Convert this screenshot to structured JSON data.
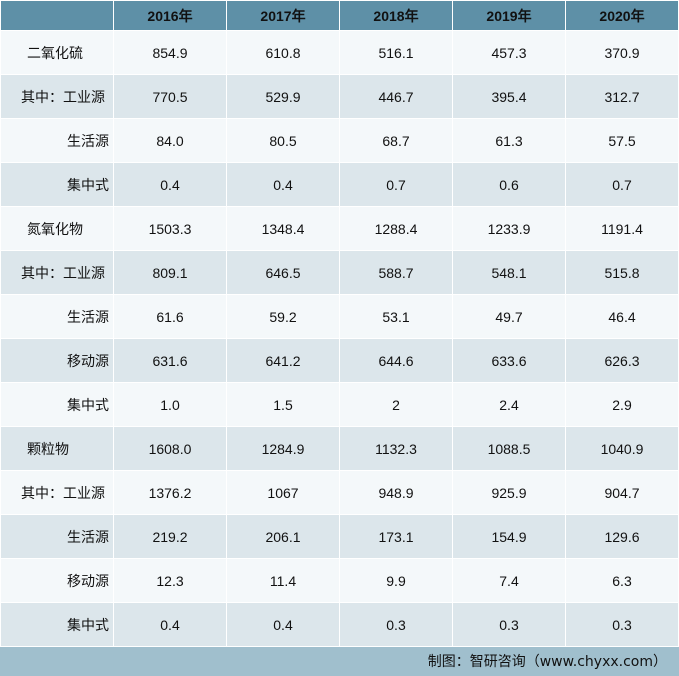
{
  "chart_data": {
    "type": "table",
    "columns": [
      "",
      "2016年",
      "2017年",
      "2018年",
      "2019年",
      "2020年"
    ],
    "rows": [
      {
        "label": "二氧化硫",
        "level": "main",
        "values": [
          "854.9",
          "610.8",
          "516.1",
          "457.3",
          "370.9"
        ]
      },
      {
        "label": "其中：工业源",
        "level": "first",
        "values": [
          "770.5",
          "529.9",
          "446.7",
          "395.4",
          "312.7"
        ]
      },
      {
        "label": "生活源",
        "level": "sub",
        "values": [
          "84.0",
          "80.5",
          "68.7",
          "61.3",
          "57.5"
        ]
      },
      {
        "label": "集中式",
        "level": "sub",
        "values": [
          "0.4",
          "0.4",
          "0.7",
          "0.6",
          "0.7"
        ]
      },
      {
        "label": "氮氧化物",
        "level": "main",
        "values": [
          "1503.3",
          "1348.4",
          "1288.4",
          "1233.9",
          "1191.4"
        ]
      },
      {
        "label": "其中：工业源",
        "level": "first",
        "values": [
          "809.1",
          "646.5",
          "588.7",
          "548.1",
          "515.8"
        ]
      },
      {
        "label": "生活源",
        "level": "sub",
        "values": [
          "61.6",
          "59.2",
          "53.1",
          "49.7",
          "46.4"
        ]
      },
      {
        "label": "移动源",
        "level": "sub",
        "values": [
          "631.6",
          "641.2",
          "644.6",
          "633.6",
          "626.3"
        ]
      },
      {
        "label": "集中式",
        "level": "sub",
        "values": [
          "1.0",
          "1.5",
          "2",
          "2.4",
          "2.9"
        ]
      },
      {
        "label": "颗粒物",
        "level": "main",
        "values": [
          "1608.0",
          "1284.9",
          "1132.3",
          "1088.5",
          "1040.9"
        ]
      },
      {
        "label": "其中：工业源",
        "level": "first",
        "values": [
          "1376.2",
          "1067",
          "948.9",
          "925.9",
          "904.7"
        ]
      },
      {
        "label": "生活源",
        "level": "sub",
        "values": [
          "219.2",
          "206.1",
          "173.1",
          "154.9",
          "129.6"
        ]
      },
      {
        "label": "移动源",
        "level": "sub",
        "values": [
          "12.3",
          "11.4",
          "9.9",
          "7.4",
          "6.3"
        ]
      },
      {
        "label": "集中式",
        "level": "sub",
        "values": [
          "0.4",
          "0.4",
          "0.3",
          "0.3",
          "0.3"
        ]
      }
    ],
    "colors": {
      "header": "#5e90a7",
      "row_light": "#f4f8fa",
      "row_dark": "#dce6eb",
      "footer": "#a0bfcd"
    }
  },
  "footer": {
    "source": "制图：智研咨询（www.chyxx.com）"
  },
  "watermark": "智研咨询 www.chyxx.com"
}
